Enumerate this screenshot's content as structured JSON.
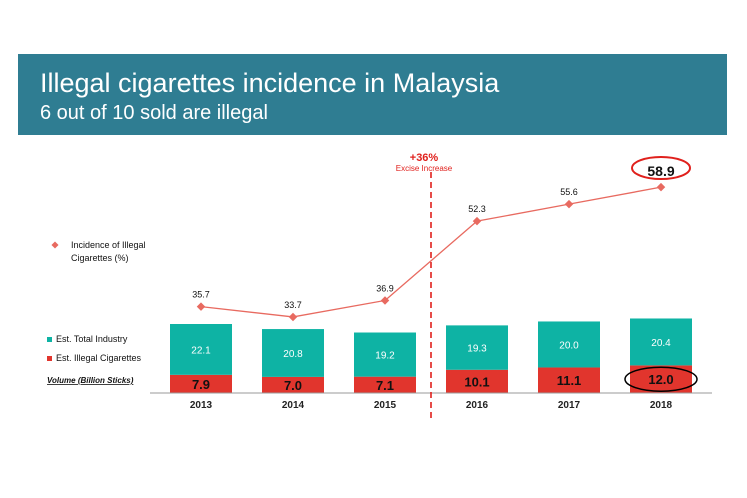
{
  "header": {
    "title": "Illegal cigarettes incidence in Malaysia",
    "subtitle": "6  out of 10 sold are illegal"
  },
  "annotation": {
    "increase": "+36%",
    "increase_label": "Excise Increase",
    "volume_label": "Volume (Billion Sticks)"
  },
  "colors": {
    "banner": "#2f7d92",
    "teal": "#0eb3a4",
    "red": "#e1352d",
    "line": "#e86a60",
    "highlight_red": "#e0201c",
    "highlight_black": "#000000"
  },
  "chart_data": {
    "type": "bar",
    "categories": [
      "2013",
      "2014",
      "2015",
      "2016",
      "2017",
      "2018"
    ],
    "series": [
      {
        "name": "Est. Illegal Cigarettes",
        "type": "stacked-bar",
        "values": [
          7.9,
          7.0,
          7.1,
          10.1,
          11.1,
          12.0
        ]
      },
      {
        "name": "Est. Total Industry",
        "type": "stacked-bar",
        "values": [
          22.1,
          20.8,
          19.2,
          19.3,
          20.0,
          20.4
        ]
      },
      {
        "name": "Incidence of Illegal Cigarettes (%)",
        "type": "line",
        "values": [
          35.7,
          33.7,
          36.9,
          52.3,
          55.6,
          58.9
        ]
      }
    ],
    "bar_labels": {
      "Est. Illegal Cigarettes": [
        "7.9",
        "7.0",
        "7.1",
        "10.1",
        "11.1",
        "12.0"
      ],
      "Est. Total Industry": [
        "22.1",
        "20.8",
        "19.2",
        "19.3",
        "20.0",
        "20.4"
      ]
    },
    "line_labels": [
      "35.7",
      "33.7",
      "36.9",
      "52.3",
      "55.6",
      "58.9"
    ],
    "legend": [
      "Incidence of Illegal Cigarettes (%)",
      "Est. Total Industry",
      "Est. Illegal Cigarettes"
    ],
    "legend_line": [
      "Incidence of Illegal",
      "Cigarettes (%)"
    ],
    "legend_placement": "left",
    "grid": false,
    "highlighted_category": "2018"
  }
}
